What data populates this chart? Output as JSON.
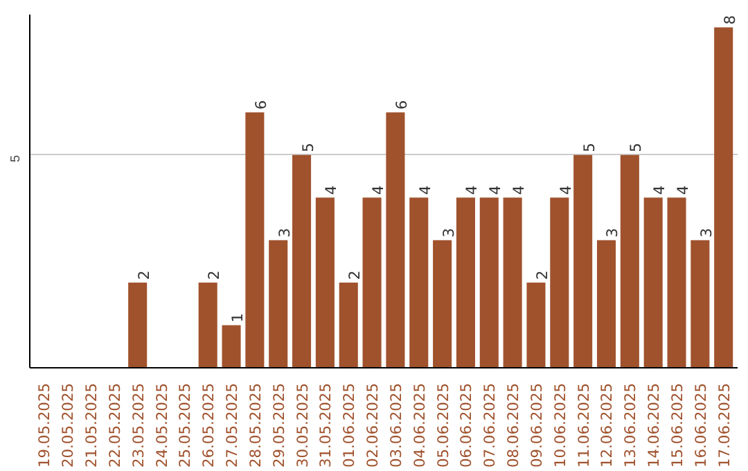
{
  "chart_data": {
    "type": "bar",
    "categories": [
      "19.05.2025",
      "20.05.2025",
      "21.05.2025",
      "22.05.2025",
      "23.05.2025",
      "24.05.2025",
      "25.05.2025",
      "26.05.2025",
      "27.05.2025",
      "28.05.2025",
      "29.05.2025",
      "30.05.2025",
      "31.05.2025",
      "01.06.2025",
      "02.06.2025",
      "03.06.2025",
      "04.06.2025",
      "05.06.2025",
      "06.06.2025",
      "07.06.2025",
      "08.06.2025",
      "09.06.2025",
      "10.06.2025",
      "11.06.2025",
      "12.06.2025",
      "13.06.2025",
      "14.06.2025",
      "15.06.2025",
      "16.06.2025",
      "17.06.2025"
    ],
    "values": [
      0,
      0,
      0,
      0,
      2,
      0,
      0,
      2,
      1,
      6,
      3,
      5,
      4,
      2,
      4,
      6,
      4,
      3,
      4,
      4,
      4,
      2,
      4,
      5,
      3,
      5,
      4,
      4,
      3,
      8
    ],
    "value_labels": [
      null,
      null,
      null,
      null,
      "2",
      null,
      null,
      "2",
      "1",
      "6",
      "3",
      "5",
      "4",
      "2",
      "4",
      "6",
      "4",
      "3",
      "4",
      "4",
      "4",
      "2",
      "4",
      "5",
      "3",
      "5",
      "4",
      "4",
      "3",
      "8"
    ],
    "color": "#a0522d",
    "ylim": [
      0,
      8.3
    ],
    "yticks": [
      5
    ],
    "grid": "y"
  }
}
